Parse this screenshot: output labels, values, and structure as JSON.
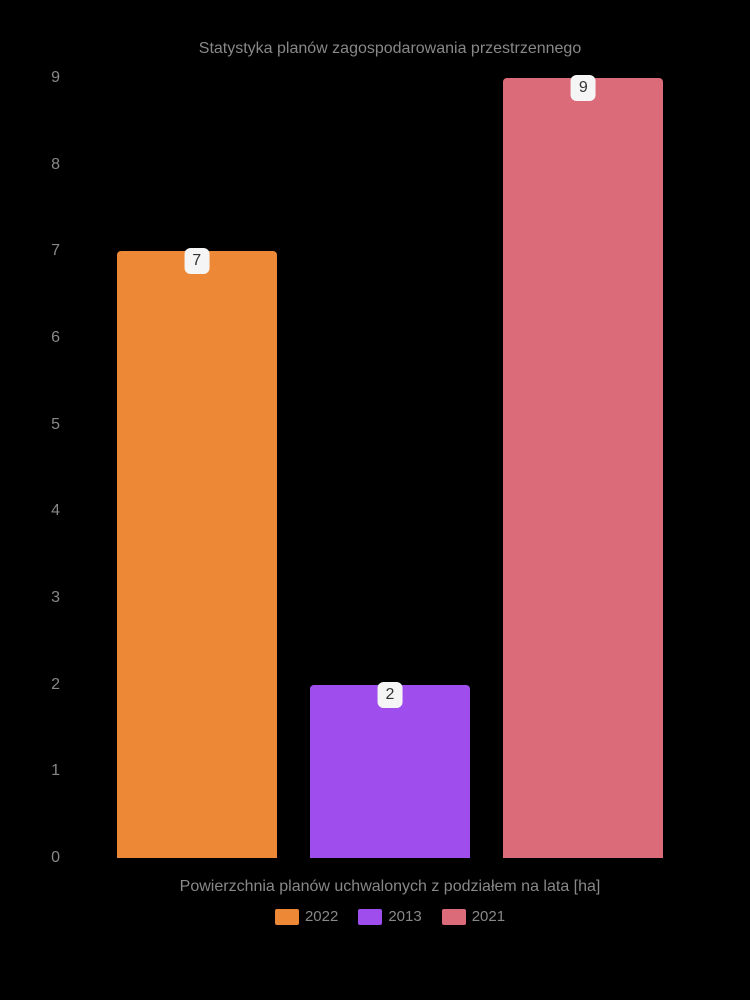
{
  "chart": {
    "type": "bar",
    "title": "Statystyka planów zagospodarowania przestrzennego",
    "x_label": "Powierzchnia planów uchwalonych z podziałem na lata [ha]",
    "background_color": "#000000",
    "text_color": "#888888",
    "title_fontsize": 16,
    "label_fontsize": 16,
    "ylim": [
      0,
      9
    ],
    "yticks": [
      0,
      1,
      2,
      3,
      4,
      5,
      6,
      7,
      8,
      9
    ],
    "series": [
      {
        "year": "2022",
        "value": 7,
        "color": "#ed8936"
      },
      {
        "year": "2013",
        "value": 2,
        "color": "#9f4eed"
      },
      {
        "year": "2021",
        "value": 9,
        "color": "#dc6b7a"
      }
    ],
    "bar_label_bg": "#f5f5f5",
    "bar_label_color": "#333333",
    "legend": [
      {
        "label": "2022",
        "color": "#ed8936"
      },
      {
        "label": "2013",
        "color": "#9f4eed"
      },
      {
        "label": "2021",
        "color": "#dc6b7a"
      }
    ]
  }
}
